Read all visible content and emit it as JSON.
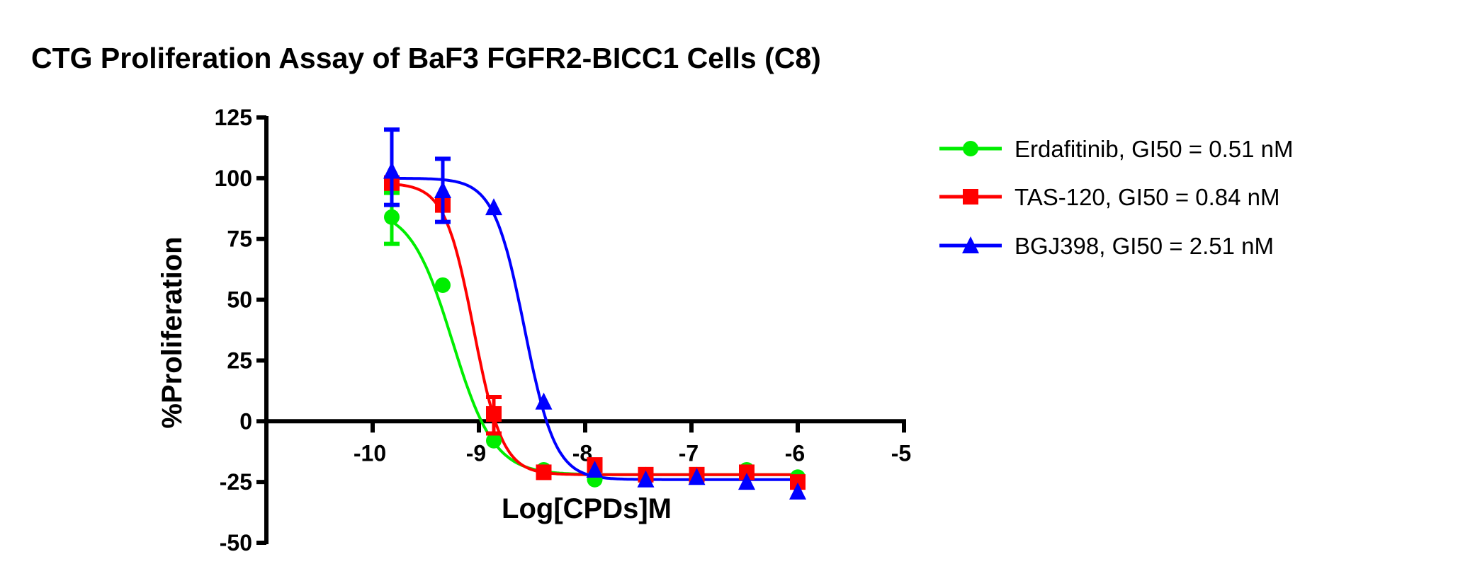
{
  "chart_data": {
    "type": "scatter",
    "title": "CTG Proliferation Assay of BaF3 FGFR2-BICC1 Cells (C8)",
    "xlabel": "Log[CPDs]M",
    "ylabel": "%Proliferation",
    "xlim": [
      -11,
      -5
    ],
    "ylim": [
      -50,
      125
    ],
    "xticks": [
      "-10",
      "-9",
      "-8",
      "-7",
      "-6",
      "-5"
    ],
    "xtick_values": [
      -10,
      -9,
      -8,
      -7,
      -6,
      -5
    ],
    "yticks": [
      "125",
      "100",
      "75",
      "50",
      "25",
      "0",
      "-25",
      "-50"
    ],
    "ytick_values": [
      125,
      100,
      75,
      50,
      25,
      0,
      -25,
      -50
    ],
    "grid": false,
    "legend_position": "right",
    "x": [
      -9.82,
      -9.34,
      -8.86,
      -8.39,
      -7.91,
      -7.43,
      -6.95,
      -6.48,
      -6.0
    ],
    "series": [
      {
        "name": "Erdafitinib, GI50 = 0.51 nM",
        "color": "#00ee00",
        "marker": "circle",
        "values": [
          84,
          56,
          -8,
          -20,
          -24,
          -22,
          -22,
          -20,
          -23
        ],
        "errors": [
          [
            73,
            94
          ],
          null,
          null,
          null,
          null,
          null,
          null,
          null,
          null
        ],
        "curve": {
          "top": 88,
          "bottom": -22,
          "logGI50": -9.25,
          "hill": 2.2
        }
      },
      {
        "name": "TAS-120, GI50 = 0.84 nM",
        "color": "#ff0000",
        "marker": "square",
        "values": [
          98,
          89,
          3,
          -21,
          -18,
          -22,
          -22,
          -21,
          -25
        ],
        "errors": [
          null,
          null,
          [
            -5,
            10
          ],
          null,
          null,
          null,
          null,
          null,
          null
        ],
        "curve": {
          "top": 98,
          "bottom": -22,
          "logGI50": -9.05,
          "hill": 3.2
        }
      },
      {
        "name": "BGJ398, GI50 = 2.51 nM",
        "color": "#0000ff",
        "marker": "triangle",
        "values": [
          103,
          95,
          88,
          8,
          -20,
          -24,
          -23,
          -25,
          -29
        ],
        "errors": [
          [
            89,
            120
          ],
          [
            82,
            108
          ],
          null,
          null,
          null,
          null,
          null,
          null,
          null
        ],
        "curve": {
          "top": 100,
          "bottom": -24,
          "logGI50": -8.57,
          "hill": 3.0
        }
      }
    ]
  }
}
